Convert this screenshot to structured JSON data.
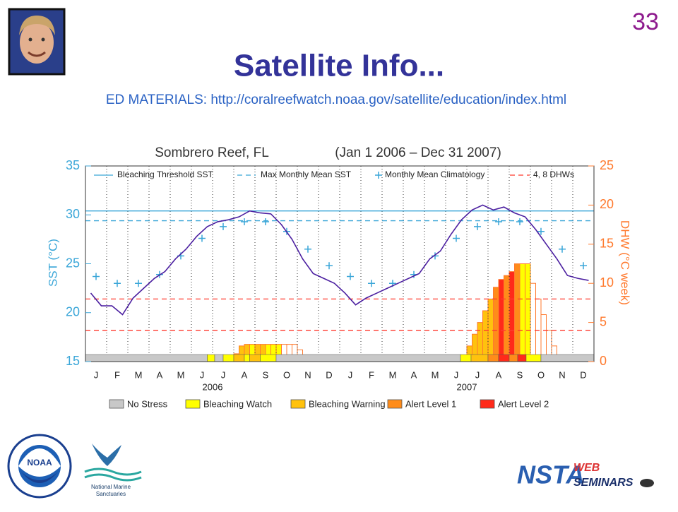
{
  "slide_number": "33",
  "title": "Satellite Info...",
  "ed_materials": "ED MATERIALS:  http://coralreefwatch.noaa.gov/satellite/education/index.html",
  "logos": {
    "noaa": "NOAA",
    "sanctuaries": [
      "National Marine",
      "Sanctuaries"
    ],
    "nsta": [
      "NSTA",
      "WEB",
      "SEMINARS"
    ]
  },
  "chart_data": {
    "type": "line",
    "title": "Sombrero Reef, FL",
    "subtitle": "(Jan 1 2006 – Dec 31 2007)",
    "ylabel": "SST (°C)",
    "y2label": "DHW (°C week)",
    "xlim": [
      0,
      24
    ],
    "ylim": [
      15,
      35
    ],
    "yticks": [
      15,
      20,
      25,
      30,
      35
    ],
    "y2lim": [
      0,
      25
    ],
    "y2ticks": [
      0,
      5,
      10,
      15,
      20,
      25
    ],
    "months": [
      "J",
      "F",
      "M",
      "A",
      "M",
      "J",
      "J",
      "A",
      "S",
      "O",
      "N",
      "D",
      "J",
      "F",
      "M",
      "A",
      "M",
      "J",
      "J",
      "A",
      "S",
      "O",
      "N",
      "D"
    ],
    "years": [
      "2006",
      "2007"
    ],
    "reference_lines": [
      {
        "name": "Bleaching Threshold SST",
        "value": 30.4,
        "color": "#3aa6d8",
        "dashed": false
      },
      {
        "name": "Max Monthly Mean SST",
        "value": 29.4,
        "color": "#3aa6d8",
        "dashed": true
      }
    ],
    "climatology": {
      "name": "Monthly Mean Climatology",
      "color": "#3aa6d8",
      "x": [
        0.5,
        1.5,
        2.5,
        3.5,
        4.5,
        5.5,
        6.5,
        7.5,
        8.5,
        9.5,
        10.5,
        11.5,
        12.5,
        13.5,
        14.5,
        15.5,
        16.5,
        17.5,
        18.5,
        19.5,
        20.5,
        21.5,
        22.5,
        23.5
      ],
      "values": [
        23.7,
        23.0,
        23.0,
        23.9,
        25.8,
        27.6,
        28.8,
        29.3,
        29.3,
        28.3,
        26.5,
        24.8,
        23.7,
        23.0,
        23.0,
        23.9,
        25.8,
        27.6,
        28.8,
        29.3,
        29.3,
        28.3,
        26.5,
        24.8
      ]
    },
    "dhw_lines": {
      "name": "4, 8 DHWs",
      "values": [
        4,
        8
      ],
      "color": "#ff3b2f"
    },
    "sst": {
      "color": "#4b1fa0",
      "x": [
        0.25,
        0.75,
        1.25,
        1.75,
        2.25,
        2.75,
        3.25,
        3.75,
        4.25,
        4.75,
        5.25,
        5.75,
        6.25,
        6.75,
        7.25,
        7.75,
        8.25,
        8.75,
        9.25,
        9.75,
        10.25,
        10.75,
        11.25,
        11.75,
        12.25,
        12.75,
        13.25,
        13.75,
        14.25,
        14.75,
        15.25,
        15.75,
        16.25,
        16.75,
        17.25,
        17.75,
        18.25,
        18.75,
        19.25,
        19.75,
        20.25,
        20.75,
        21.25,
        21.75,
        22.25,
        22.75,
        23.25,
        23.75
      ],
      "values": [
        22.0,
        20.7,
        20.7,
        19.8,
        21.5,
        22.5,
        23.5,
        24.2,
        25.5,
        26.5,
        27.8,
        28.8,
        29.3,
        29.5,
        29.8,
        30.4,
        30.2,
        30.1,
        29.0,
        27.5,
        25.5,
        24.0,
        23.5,
        23.0,
        22.0,
        20.8,
        21.5,
        22.0,
        22.5,
        23.0,
        23.5,
        24.0,
        25.5,
        26.3,
        28.0,
        29.5,
        30.5,
        31.0,
        30.5,
        30.8,
        30.2,
        29.8,
        28.5,
        27.0,
        25.5,
        23.8,
        23.5,
        23.3
      ]
    },
    "dhw": {
      "color": "#ff7a2e",
      "x": [
        7.0,
        7.25,
        7.5,
        7.75,
        8.0,
        8.25,
        8.5,
        8.75,
        9.0,
        9.25,
        9.5,
        9.75,
        10.0,
        10.25,
        17.75,
        18.0,
        18.25,
        18.5,
        18.75,
        19.0,
        19.25,
        19.5,
        19.75,
        20.0,
        20.25,
        20.5,
        20.75,
        21.0,
        21.25,
        21.5,
        21.75,
        22.0,
        22.25
      ],
      "values": [
        1,
        2,
        2.2,
        2.2,
        2.2,
        2.2,
        2.2,
        2.2,
        2.2,
        2.2,
        2.2,
        2.2,
        1.5,
        0,
        0.5,
        2,
        3.5,
        5,
        6.5,
        8,
        9.5,
        10.5,
        11,
        11.5,
        12.5,
        12.5,
        12.5,
        10,
        8,
        6,
        4,
        2,
        0
      ],
      "stress": [
        2,
        2,
        2,
        1,
        2,
        2,
        1,
        1,
        1,
        0,
        0,
        0,
        0,
        0,
        1,
        2,
        2,
        2,
        2,
        2,
        3,
        4,
        3,
        4,
        3,
        1,
        1,
        0,
        0,
        0,
        0,
        0,
        0
      ]
    },
    "stress_levels": [
      {
        "name": "No Stress",
        "color": "#c8c8c8"
      },
      {
        "name": "Bleaching Watch",
        "color": "#ffff00"
      },
      {
        "name": "Bleaching Warning",
        "color": "#ffc20e"
      },
      {
        "name": "Alert Level 1",
        "color": "#ff8c1a"
      },
      {
        "name": "Alert Level 2",
        "color": "#ff2a1a"
      }
    ],
    "stress_periods": [
      {
        "x": [
          0,
          5.75
        ],
        "level": 0
      },
      {
        "x": [
          5.75,
          6.1
        ],
        "level": 1
      },
      {
        "x": [
          6.1,
          6.5
        ],
        "level": 0
      },
      {
        "x": [
          6.5,
          7.0
        ],
        "level": 1
      },
      {
        "x": [
          7.0,
          7.5
        ],
        "level": 2
      },
      {
        "x": [
          7.5,
          7.75
        ],
        "level": 1
      },
      {
        "x": [
          7.75,
          8.25
        ],
        "level": 2
      },
      {
        "x": [
          8.25,
          9.0
        ],
        "level": 1
      },
      {
        "x": [
          9.0,
          17.7
        ],
        "level": 0
      },
      {
        "x": [
          17.7,
          18.2
        ],
        "level": 1
      },
      {
        "x": [
          18.2,
          19.0
        ],
        "level": 2
      },
      {
        "x": [
          19.0,
          19.5
        ],
        "level": 3
      },
      {
        "x": [
          19.5,
          20.0
        ],
        "level": 4
      },
      {
        "x": [
          20.0,
          20.4
        ],
        "level": 3
      },
      {
        "x": [
          20.4,
          20.8
        ],
        "level": 4
      },
      {
        "x": [
          20.8,
          21.5
        ],
        "level": 1
      },
      {
        "x": [
          21.5,
          24
        ],
        "level": 0
      }
    ]
  }
}
